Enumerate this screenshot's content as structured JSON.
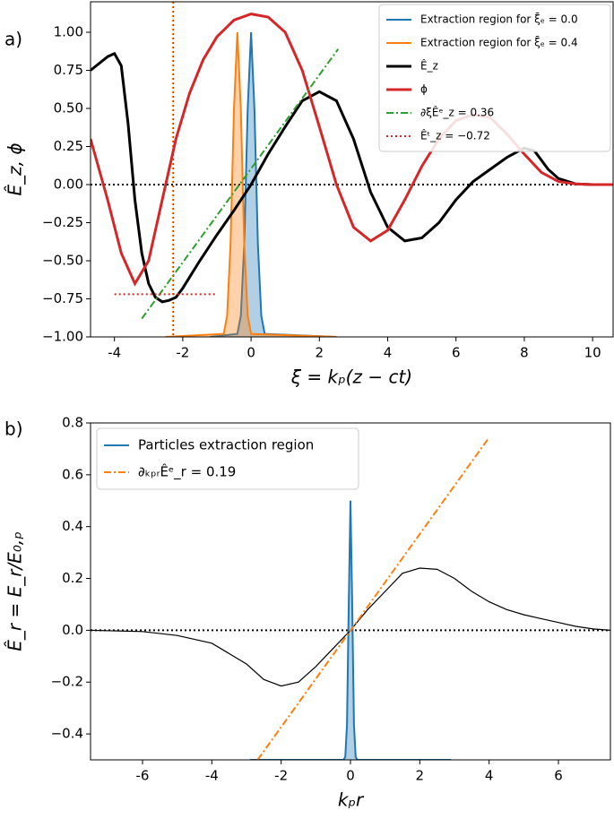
{
  "chart_data": [
    {
      "type": "line",
      "panel_label": "a)",
      "xlabel": "ξ = kₚ(z − ct)",
      "ylabel": "Ê_z, ϕ",
      "xlim": [
        -4.7,
        10.6
      ],
      "ylim": [
        -1.0,
        1.2
      ],
      "xticks": [
        -4,
        -2,
        0,
        2,
        4,
        6,
        8,
        10
      ],
      "yticks": [
        {
          "value": -1.0,
          "label": "−1.00"
        },
        {
          "value": -0.75,
          "label": "−0.75"
        },
        {
          "value": -0.5,
          "label": "−0.50"
        },
        {
          "value": -0.25,
          "label": "−0.25"
        },
        {
          "value": 0.0,
          "label": "0.00"
        },
        {
          "value": 0.25,
          "label": "0.25"
        },
        {
          "value": 0.5,
          "label": "0.50"
        },
        {
          "value": 0.75,
          "label": "0.75"
        },
        {
          "value": 1.0,
          "label": "1.00"
        }
      ],
      "legend": "upper right",
      "hlines": [
        {
          "y": 0,
          "color": "#000000",
          "style": "dotted"
        }
      ],
      "vlines": [
        {
          "x": -2.3,
          "color": "#ff7f0e",
          "style": "dotted"
        },
        {
          "x": -2.27,
          "color": "#d62728",
          "style": "dotted"
        }
      ],
      "series": [
        {
          "name": "Extraction region for ξ̄ₑ = 0.0",
          "color": "#1f77b4",
          "style": "solid",
          "fill": true,
          "x": [
            -1.2,
            -0.4,
            -0.3,
            -0.2,
            -0.1,
            0,
            0.1,
            0.2,
            0.3,
            0.4,
            2.5
          ],
          "values": [
            -1,
            -0.98,
            -0.86,
            -0.39,
            0.49,
            1.0,
            0.49,
            -0.39,
            -0.86,
            -0.98,
            -1
          ]
        },
        {
          "name": "Extraction region for ξ̄ₑ = 0.4",
          "color": "#ff7f0e",
          "style": "solid",
          "fill": true,
          "x": [
            -2.5,
            -0.8,
            -0.7,
            -0.6,
            -0.5,
            -0.4,
            -0.3,
            -0.2,
            -0.1,
            0.0,
            2.5
          ],
          "values": [
            -1,
            -0.98,
            -0.86,
            -0.39,
            0.49,
            1.0,
            0.49,
            -0.39,
            -0.86,
            -0.98,
            -1
          ]
        },
        {
          "name": "Ê_z",
          "color": "#000000",
          "style": "solid",
          "x": [
            -4.7,
            -4.2,
            -4.0,
            -3.8,
            -3.6,
            -3.4,
            -3.2,
            -3.0,
            -2.8,
            -2.6,
            -2.4,
            -2.2,
            -2.0,
            -1.5,
            -1.0,
            -0.5,
            0,
            0.5,
            1.0,
            1.5,
            2.0,
            2.5,
            3.0,
            3.5,
            4.0,
            4.5,
            5.0,
            5.5,
            6.0,
            6.5,
            7.0,
            7.5,
            8.0,
            8.3,
            8.7,
            9.0,
            9.5,
            10.0,
            10.6
          ],
          "values": [
            0.75,
            0.84,
            0.86,
            0.78,
            0.4,
            -0.1,
            -0.45,
            -0.65,
            -0.74,
            -0.77,
            -0.76,
            -0.74,
            -0.68,
            -0.5,
            -0.33,
            -0.17,
            0.0,
            0.2,
            0.38,
            0.55,
            0.61,
            0.55,
            0.3,
            -0.05,
            -0.28,
            -0.37,
            -0.35,
            -0.25,
            -0.1,
            0.02,
            0.1,
            0.18,
            0.24,
            0.22,
            0.1,
            0.04,
            0.005,
            0,
            0
          ]
        },
        {
          "name": "ϕ",
          "color": "#d62728",
          "style": "solid",
          "x": [
            -4.7,
            -4.2,
            -3.8,
            -3.4,
            -3.0,
            -2.6,
            -2.2,
            -1.8,
            -1.4,
            -1.0,
            -0.5,
            0,
            0.5,
            1.0,
            1.5,
            2.0,
            2.5,
            3.0,
            3.5,
            4.0,
            4.5,
            5.0,
            5.5,
            6.0,
            6.5,
            7.0,
            7.5,
            8.0,
            8.5,
            9.0,
            9.5,
            10.0,
            10.6
          ],
          "values": [
            0.3,
            -0.1,
            -0.45,
            -0.65,
            -0.5,
            -0.1,
            0.3,
            0.6,
            0.82,
            0.97,
            1.08,
            1.12,
            1.1,
            1.0,
            0.75,
            0.38,
            0.0,
            -0.28,
            -0.37,
            -0.3,
            -0.1,
            0.12,
            0.3,
            0.42,
            0.46,
            0.44,
            0.33,
            0.2,
            0.08,
            0.02,
            0.005,
            0,
            0
          ]
        },
        {
          "name": "∂ξÊᵉ_z = 0.36",
          "color": "#2ca02c",
          "style": "dashdot",
          "x": [
            -3.2,
            2.55
          ],
          "values": [
            -0.88,
            0.89
          ]
        },
        {
          "name": "Êᵗ_z = −0.72",
          "color": "#d62728",
          "style": "dotted",
          "x": [
            -4.0,
            -1.0
          ],
          "values": [
            -0.72,
            -0.72
          ]
        }
      ]
    },
    {
      "type": "line",
      "panel_label": "b)",
      "xlabel": "kₚr",
      "ylabel": "Ê_r = E_r/E₀,ₚ",
      "xlim": [
        -7.5,
        7.5
      ],
      "ylim": [
        -0.5,
        0.8
      ],
      "xticks": [
        -6,
        -4,
        -2,
        0,
        2,
        4,
        6
      ],
      "yticks": [
        {
          "value": -0.4,
          "label": "−0.4"
        },
        {
          "value": -0.2,
          "label": "−0.2"
        },
        {
          "value": 0.0,
          "label": "0.0"
        },
        0.2,
        0.4,
        0.6,
        0.8
      ],
      "legend": "upper left",
      "hlines": [
        {
          "y": 0,
          "color": "#000000",
          "style": "dotted"
        }
      ],
      "series": [
        {
          "name": "Particles extraction region",
          "color": "#1f77b4",
          "style": "solid",
          "fill": true,
          "x": [
            -2.9,
            -0.2,
            -0.15,
            -0.1,
            -0.05,
            0,
            0.05,
            0.1,
            0.15,
            0.2,
            2.9
          ],
          "values": [
            -0.5,
            -0.5,
            -0.489,
            -0.365,
            0.107,
            0.5,
            0.107,
            -0.365,
            -0.489,
            -0.5,
            -0.5
          ]
        },
        {
          "color": "#000000",
          "style": "solid",
          "x": [
            -7.5,
            -6,
            -5,
            -4,
            -3,
            -2.5,
            -2,
            -1.5,
            -1,
            -0.5,
            0,
            0.5,
            1,
            1.5,
            2,
            2.5,
            3,
            3.5,
            4,
            4.5,
            5,
            5.5,
            6,
            6.5,
            7,
            7.5
          ],
          "values": [
            0,
            -0.005,
            -0.02,
            -0.05,
            -0.13,
            -0.19,
            -0.215,
            -0.2,
            -0.14,
            -0.07,
            0,
            0.08,
            0.15,
            0.22,
            0.24,
            0.235,
            0.2,
            0.15,
            0.11,
            0.08,
            0.06,
            0.045,
            0.03,
            0.015,
            0.005,
            0
          ]
        },
        {
          "name": "∂ₖₚᵣÊᵉ_r = 0.19",
          "color": "#ff7f0e",
          "style": "dashdot",
          "x": [
            -2.68,
            4.0
          ],
          "values": [
            -0.5,
            0.744
          ]
        }
      ]
    }
  ]
}
